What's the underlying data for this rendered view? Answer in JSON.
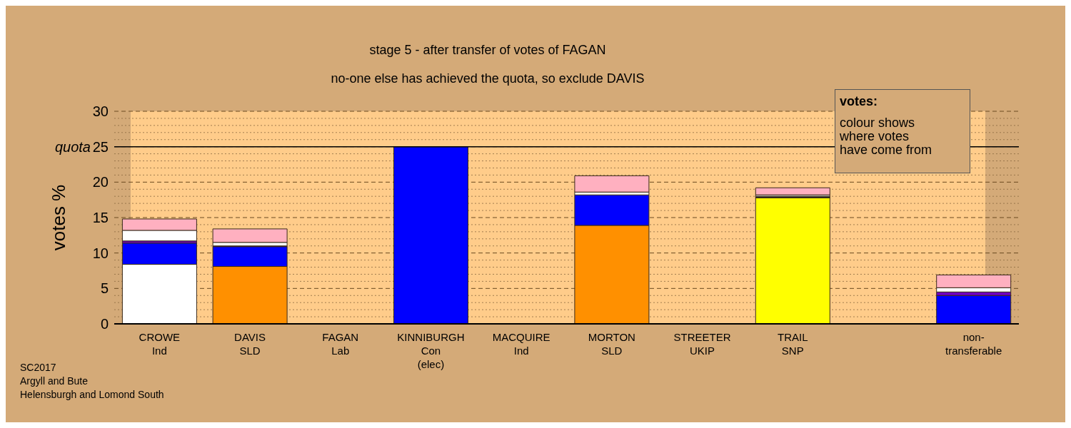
{
  "chart_data": {
    "type": "bar",
    "title": "stage 5 - after transfer of votes of FAGAN",
    "subtitle": "no-one else has achieved the quota, so exclude DAVIS",
    "ylabel": "votes %",
    "categories": [
      "CROWE\nInd",
      "DAVIS\nSLD",
      "FAGAN\nLab",
      "KINNIBURGH\nCon\n(elec)",
      "MACQUIRE\nInd",
      "MORTON\nSLD",
      "STREETER\nUKIP",
      "TRAIL\nSNP",
      null,
      "non-\ntransferable"
    ],
    "stacked": true,
    "series": [
      {
        "color": "#ffffff",
        "values": [
          8.4,
          null,
          null,
          null,
          null,
          null,
          null,
          null,
          null,
          null
        ]
      },
      {
        "color": "#ff9000",
        "values": [
          null,
          8.1,
          null,
          null,
          null,
          13.9,
          null,
          null,
          null,
          null
        ]
      },
      {
        "color": "#ffff00",
        "values": [
          null,
          null,
          null,
          null,
          null,
          null,
          null,
          17.8,
          null,
          null
        ]
      },
      {
        "color": "#0000ff",
        "values": [
          3.0,
          2.8,
          null,
          25,
          null,
          4.3,
          null,
          null,
          null,
          4.0
        ]
      },
      {
        "color": "#7000c0",
        "values": [
          0.3,
          0.1,
          null,
          null,
          null,
          null,
          null,
          null,
          null,
          0.5
        ]
      },
      {
        "color": "#202020",
        "values": [
          null,
          null,
          null,
          null,
          null,
          null,
          null,
          0.2,
          null,
          null
        ]
      },
      {
        "color": "#ffffff",
        "values": [
          1.5,
          0.5,
          null,
          null,
          null,
          0.4,
          null,
          0.2,
          null,
          0.6
        ]
      },
      {
        "color": "#ffb0c0",
        "values": [
          1.6,
          1.9,
          null,
          null,
          null,
          2.3,
          null,
          1.0,
          null,
          1.8
        ]
      }
    ],
    "ylim": [
      0,
      30
    ],
    "yticks": [
      0,
      {
        "value": 1,
        "label": null
      },
      {
        "value": 2,
        "label": null
      },
      {
        "value": 3,
        "label": null
      },
      {
        "value": 4,
        "label": null
      },
      5,
      {
        "value": 6,
        "label": null
      },
      {
        "value": 7,
        "label": null
      },
      {
        "value": 8,
        "label": null
      },
      {
        "value": 9,
        "label": null
      },
      10,
      {
        "value": 11,
        "label": null
      },
      {
        "value": 12,
        "label": null
      },
      {
        "value": 13,
        "label": null
      },
      {
        "value": 14,
        "label": null
      },
      15,
      {
        "value": 16,
        "label": null
      },
      {
        "value": 17,
        "label": null
      },
      {
        "value": 18,
        "label": null
      },
      {
        "value": 19,
        "label": null
      },
      20,
      {
        "value": 21,
        "label": null
      },
      {
        "value": 22,
        "label": null
      },
      {
        "value": 23,
        "label": null
      },
      {
        "value": 24,
        "label": null
      },
      25,
      {
        "value": 26,
        "label": null
      },
      {
        "value": 27,
        "label": null
      },
      {
        "value": 28,
        "label": null
      },
      {
        "value": 29,
        "label": null
      },
      30
    ],
    "grid": "y",
    "ref_lines": [
      {
        "axis": "y",
        "value": 25,
        "label": "quota",
        "color": "#000000",
        "line_style": "solid"
      }
    ],
    "annotations": [
      "votes:",
      "colour shows\nwhere votes\nhave come from",
      "SC2017\nArgyll and Bute\nHelensburgh and Lomond South"
    ]
  }
}
